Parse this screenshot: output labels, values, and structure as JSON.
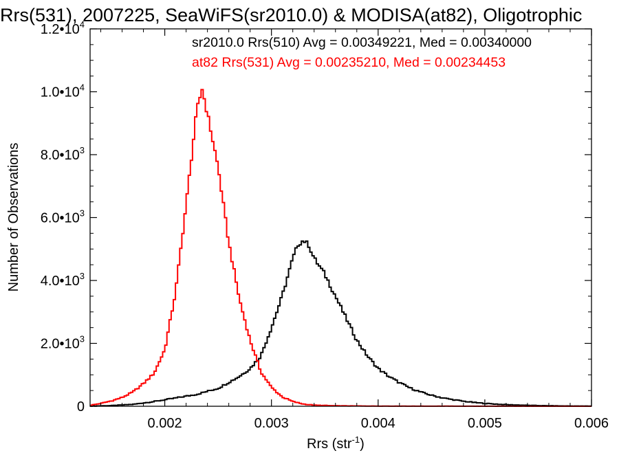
{
  "chart_data": {
    "type": "histogram",
    "title": "Rrs(531), 2007225, SeaWiFS(sr2010.0) & MODISA(at82), Oligotrophic",
    "xlabel_main": "Rrs (str",
    "xlabel_sup": "-1",
    "xlabel_close": ")",
    "ylabel": "Number of Observations",
    "xlim": [
      0.0013,
      0.006
    ],
    "ylim": [
      0,
      12000
    ],
    "x_ticks": [
      {
        "value": 0.002,
        "label": "0.002"
      },
      {
        "value": 0.003,
        "label": "0.003"
      },
      {
        "value": 0.004,
        "label": "0.004"
      },
      {
        "value": 0.005,
        "label": "0.005"
      },
      {
        "value": 0.006,
        "label": "0.006"
      }
    ],
    "y_ticks": [
      {
        "value": 0,
        "mant": "0",
        "exp": ""
      },
      {
        "value": 2000,
        "mant": "2.0•10",
        "exp": "3"
      },
      {
        "value": 4000,
        "mant": "4.0•10",
        "exp": "3"
      },
      {
        "value": 6000,
        "mant": "6.0•10",
        "exp": "3"
      },
      {
        "value": 8000,
        "mant": "8.0•10",
        "exp": "3"
      },
      {
        "value": 10000,
        "mant": "1.0•10",
        "exp": "4"
      },
      {
        "value": 12000,
        "mant": "1.2•10",
        "exp": "4"
      }
    ],
    "series": [
      {
        "name": "sr2010.0 Rrs(510)",
        "legend": "sr2010.0 Rrs(510) Avg = 0.00349221, Med = 0.00340000",
        "color": "#000000",
        "points": [
          [
            0.0013,
            5
          ],
          [
            0.0015,
            20
          ],
          [
            0.0017,
            60
          ],
          [
            0.0019,
            150
          ],
          [
            0.0021,
            260
          ],
          [
            0.0023,
            380
          ],
          [
            0.0025,
            570
          ],
          [
            0.0027,
            950
          ],
          [
            0.0028,
            1200
          ],
          [
            0.0029,
            1600
          ],
          [
            0.003,
            2500
          ],
          [
            0.0031,
            3500
          ],
          [
            0.0032,
            4700
          ],
          [
            0.00325,
            5150
          ],
          [
            0.0033,
            5280
          ],
          [
            0.00335,
            5120
          ],
          [
            0.0034,
            4700
          ],
          [
            0.0035,
            4200
          ],
          [
            0.0036,
            3500
          ],
          [
            0.0037,
            2800
          ],
          [
            0.0038,
            2100
          ],
          [
            0.0039,
            1600
          ],
          [
            0.004,
            1200
          ],
          [
            0.0041,
            950
          ],
          [
            0.0042,
            750
          ],
          [
            0.0043,
            580
          ],
          [
            0.0044,
            450
          ],
          [
            0.0045,
            350
          ],
          [
            0.0046,
            270
          ],
          [
            0.0047,
            210
          ],
          [
            0.0048,
            160
          ],
          [
            0.0049,
            120
          ],
          [
            0.005,
            90
          ],
          [
            0.0052,
            50
          ],
          [
            0.0054,
            30
          ],
          [
            0.0056,
            15
          ],
          [
            0.0058,
            8
          ],
          [
            0.006,
            5
          ]
        ]
      },
      {
        "name": "at82 Rrs(531)",
        "legend": "at82 Rrs(531) Avg = 0.00235210, Med = 0.00234453",
        "color": "#ff0000",
        "points": [
          [
            0.0013,
            30
          ],
          [
            0.0014,
            90
          ],
          [
            0.0015,
            170
          ],
          [
            0.0016,
            280
          ],
          [
            0.0017,
            450
          ],
          [
            0.0018,
            720
          ],
          [
            0.0019,
            1050
          ],
          [
            0.002,
            1800
          ],
          [
            0.0021,
            3600
          ],
          [
            0.0022,
            6400
          ],
          [
            0.0023,
            9400
          ],
          [
            0.00235,
            10100
          ],
          [
            0.0024,
            9300
          ],
          [
            0.0025,
            7600
          ],
          [
            0.0026,
            5200
          ],
          [
            0.0027,
            3400
          ],
          [
            0.0028,
            2100
          ],
          [
            0.0029,
            1100
          ],
          [
            0.003,
            600
          ],
          [
            0.0031,
            300
          ],
          [
            0.0032,
            150
          ],
          [
            0.0033,
            70
          ],
          [
            0.0034,
            35
          ],
          [
            0.0036,
            15
          ],
          [
            0.004,
            5
          ],
          [
            0.005,
            2
          ],
          [
            0.006,
            0
          ]
        ]
      }
    ]
  }
}
